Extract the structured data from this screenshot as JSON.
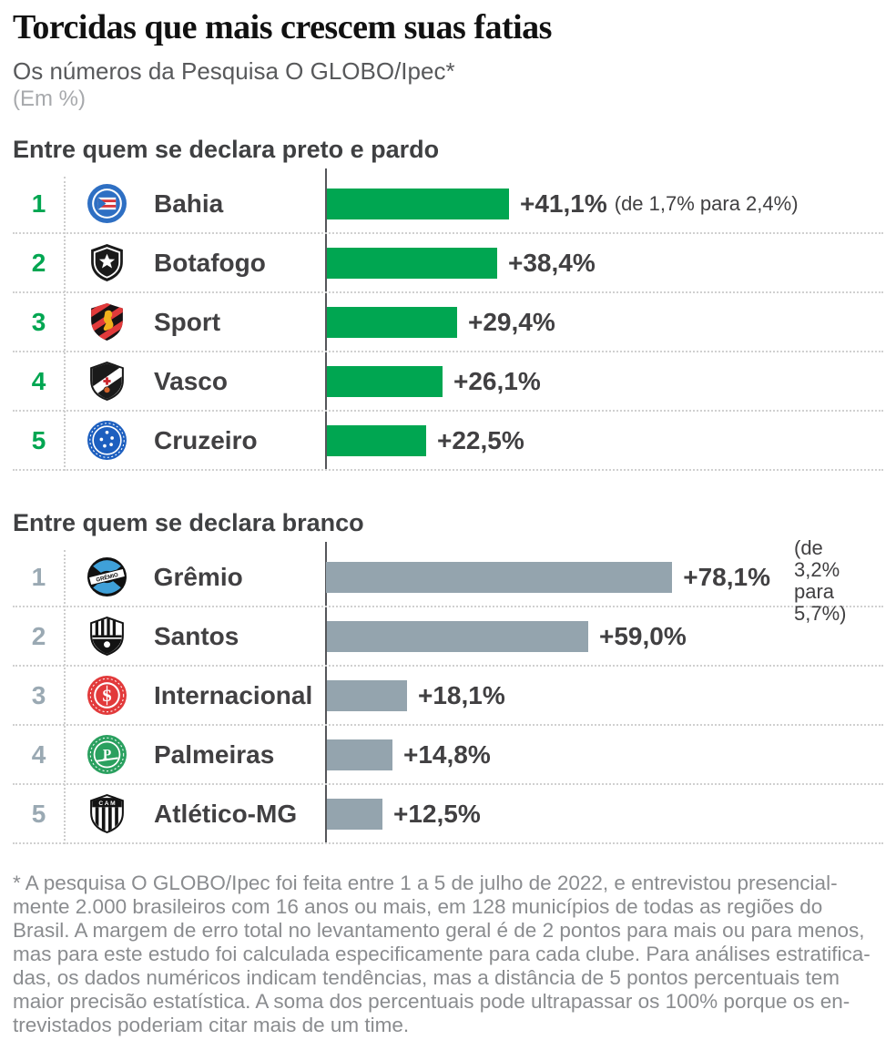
{
  "header": {
    "title": "Torcidas que mais crescem suas fatias",
    "subtitle": "Os números da Pesquisa O GLOBO/Ipec*",
    "unit_note": "(Em %)"
  },
  "colors": {
    "section1_accent": "#00a651",
    "section2_accent": "#94a4ae",
    "section2_rank": "#9aa9b3",
    "axis_line": "#55565a",
    "text_dark": "#414042",
    "footnote_gray": "#8a8c8f"
  },
  "chart_data": [
    {
      "type": "bar",
      "orientation": "horizontal",
      "title": "Entre quem se declara preto e pardo",
      "value_unit": "%",
      "bar_color": "#00a651",
      "rank_color": "#00a651",
      "ranks": [
        "1",
        "2",
        "3",
        "4",
        "5"
      ],
      "categories": [
        "Bahia",
        "Botafogo",
        "Sport",
        "Vasco",
        "Cruzeiro"
      ],
      "badge_icons": [
        "bahia-crest",
        "botafogo-crest",
        "sport-crest",
        "vasco-crest",
        "cruzeiro-crest"
      ],
      "values": [
        41.1,
        38.4,
        29.4,
        26.1,
        22.5
      ],
      "value_labels": [
        "+41,1%",
        "+38,4%",
        "+29,4%",
        "+26,1%",
        "+22,5%"
      ],
      "notes": [
        "(de 1,7% para 2,4%)",
        "",
        "",
        "",
        ""
      ]
    },
    {
      "type": "bar",
      "orientation": "horizontal",
      "title": "Entre quem se declara branco",
      "value_unit": "%",
      "bar_color": "#94a4ae",
      "rank_color": "#9aa9b3",
      "ranks": [
        "1",
        "2",
        "3",
        "4",
        "5"
      ],
      "categories": [
        "Grêmio",
        "Santos",
        "Internacional",
        "Palmeiras",
        "Atlético-MG"
      ],
      "badge_icons": [
        "gremio-crest",
        "santos-crest",
        "internacional-crest",
        "palmeiras-crest",
        "atletico-mg-crest"
      ],
      "values": [
        78.1,
        59.0,
        18.1,
        14.8,
        12.5
      ],
      "value_labels": [
        "+78,1%",
        "+59,0%",
        "+18,1%",
        "+14,8%",
        "+12,5%"
      ],
      "notes": [
        "(de 3,2% para 5,7%)",
        "",
        "",
        "",
        ""
      ]
    }
  ],
  "footnote": {
    "lines": [
      "* A pesquisa O GLOBO/Ipec foi feita entre 1 a 5 de julho de 2022, e entrevistou presencial-",
      "mente 2.000 brasileiros com 16 anos ou mais, em 128 municípios de todas as regiões do",
      "Brasil. A margem de erro total no levantamento geral é de 2 pontos para mais ou para menos,",
      "mas para este estudo foi calculada especificamente para cada clube. Para análises estratifica-",
      "das, os dados numéricos indicam tendências, mas a distância de 5 pontos percentuais tem",
      "maior precisão estatística. A soma dos percentuais pode ultrapassar os 100% porque os en-",
      "trevistados poderiam citar mais de um time."
    ]
  }
}
